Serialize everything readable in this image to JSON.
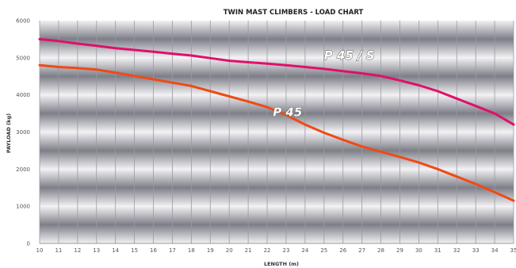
{
  "chart_data": {
    "type": "line",
    "title": "TWIN  MAST CLIMBERS  -  LOAD CHART",
    "xlabel": "LENGTH (m)",
    "ylabel": "PAYLOAD (kg)",
    "xlim": [
      10,
      35
    ],
    "ylim": [
      0,
      6000
    ],
    "x_ticks": [
      10,
      11,
      12,
      13,
      14,
      15,
      16,
      17,
      18,
      19,
      20,
      21,
      22,
      23,
      24,
      25,
      26,
      27,
      28,
      29,
      30,
      31,
      32,
      33,
      34,
      35
    ],
    "y_ticks": [
      0,
      1000,
      2000,
      3000,
      4000,
      5000,
      6000
    ],
    "grid": true,
    "colors": {
      "P 45 / S": "#e0106a",
      "P 45": "#f04a14"
    },
    "series": [
      {
        "name": "P 45 / S",
        "x": [
          10,
          11,
          12,
          13,
          14,
          15,
          16,
          17,
          18,
          19,
          20,
          21,
          22,
          23,
          24,
          25,
          26,
          27,
          28,
          29,
          30,
          31,
          32,
          33,
          34,
          35
        ],
        "values": [
          5500,
          5450,
          5380,
          5320,
          5260,
          5210,
          5160,
          5110,
          5060,
          4990,
          4920,
          4880,
          4840,
          4800,
          4750,
          4700,
          4640,
          4580,
          4510,
          4390,
          4260,
          4100,
          3900,
          3700,
          3500,
          3200
        ]
      },
      {
        "name": "P 45",
        "x": [
          10,
          11,
          12,
          13,
          14,
          15,
          16,
          17,
          18,
          19,
          20,
          21,
          22,
          23,
          24,
          25,
          26,
          27,
          28,
          29,
          30,
          31,
          32,
          33,
          34,
          35
        ],
        "values": [
          4800,
          4750,
          4720,
          4680,
          4600,
          4510,
          4420,
          4330,
          4240,
          4100,
          3960,
          3820,
          3670,
          3460,
          3200,
          2980,
          2790,
          2610,
          2470,
          2330,
          2180,
          2000,
          1800,
          1600,
          1380,
          1150
        ]
      }
    ],
    "annotations": [
      {
        "text": "P 45 / S",
        "x": 25.0,
        "y": 4950
      },
      {
        "text": "P 45",
        "x": 22.3,
        "y": 3430
      }
    ]
  }
}
